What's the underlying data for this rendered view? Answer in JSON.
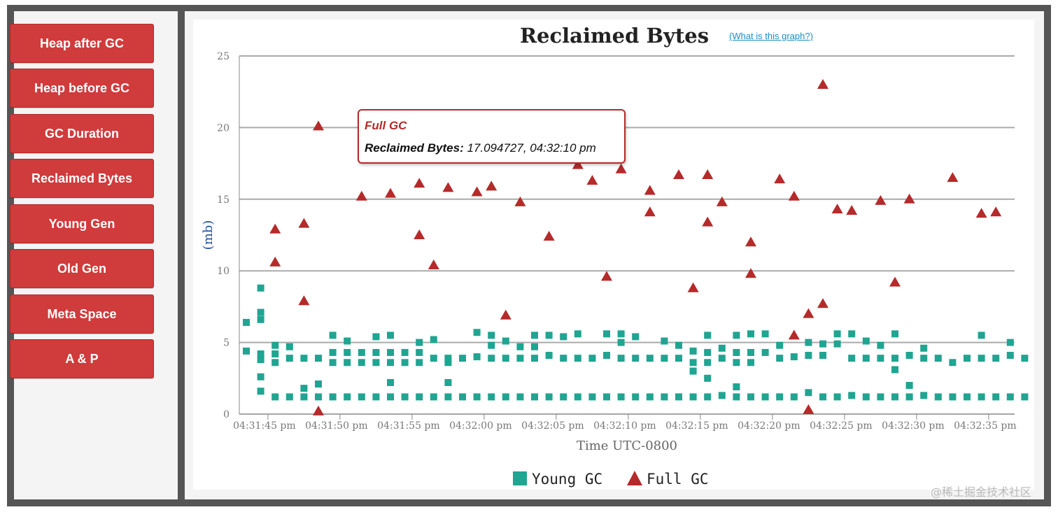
{
  "sidebar": {
    "items": [
      {
        "label": "Heap after GC"
      },
      {
        "label": "Heap before GC"
      },
      {
        "label": "GC Duration"
      },
      {
        "label": "Reclaimed Bytes"
      },
      {
        "label": "Young Gen"
      },
      {
        "label": "Old Gen"
      },
      {
        "label": "Meta Space"
      },
      {
        "label": "A & P"
      }
    ]
  },
  "help_link": "(What is this graph?)",
  "tooltip": {
    "series": "Full GC",
    "key": "Reclaimed Bytes:",
    "value": "17.094727, 04:32:10 pm"
  },
  "watermark": "@稀土掘金技术社区",
  "colors": {
    "young": "#1fa591",
    "full": "#b52a2a",
    "button": "#d03b3b",
    "grid": "#aaaaaa",
    "ylabel": "#1f4f9c",
    "frame": "#555555"
  },
  "chart_data": {
    "type": "scatter",
    "title": "Reclaimed Bytes",
    "xlabel": "Time UTC-0800",
    "ylabel": "(mb)",
    "ylim": [
      0,
      25
    ],
    "xlim_seconds": [
      43.5,
      36.8
    ],
    "yticks": [
      "0",
      "5",
      "10",
      "15",
      "20",
      "25"
    ],
    "xticks": [
      "04:31:45 pm",
      "04:31:50 pm",
      "04:31:55 pm",
      "04:32:00 pm",
      "04:32:05 pm",
      "04:32:10 pm",
      "04:32:15 pm",
      "04:32:20 pm",
      "04:32:25 pm",
      "04:32:30 pm",
      "04:32:35 pm"
    ],
    "xtick_seconds": [
      45,
      50,
      55,
      60,
      65,
      70,
      75,
      80,
      85,
      90,
      95
    ],
    "grid": true,
    "legend": "bottom-center",
    "series": [
      {
        "name": "Young GC",
        "marker": "square",
        "points": [
          [
            43.5,
            6.4
          ],
          [
            43.5,
            4.4
          ],
          [
            44.5,
            8.8
          ],
          [
            44.5,
            7.1
          ],
          [
            44.5,
            6.6
          ],
          [
            44.5,
            4.2
          ],
          [
            44.5,
            3.8
          ],
          [
            44.5,
            2.6
          ],
          [
            44.5,
            1.6
          ],
          [
            45.5,
            4.8
          ],
          [
            45.5,
            4.2
          ],
          [
            45.5,
            3.6
          ],
          [
            45.5,
            1.2
          ],
          [
            46.5,
            4.7
          ],
          [
            46.5,
            3.9
          ],
          [
            46.5,
            1.2
          ],
          [
            47.5,
            3.9
          ],
          [
            47.5,
            1.8
          ],
          [
            47.5,
            1.2
          ],
          [
            48.5,
            3.9
          ],
          [
            48.5,
            2.1
          ],
          [
            48.5,
            1.2
          ],
          [
            49.5,
            5.5
          ],
          [
            49.5,
            4.3
          ],
          [
            49.5,
            3.6
          ],
          [
            49.5,
            1.2
          ],
          [
            50.5,
            5.1
          ],
          [
            50.5,
            4.3
          ],
          [
            50.5,
            3.6
          ],
          [
            50.5,
            1.2
          ],
          [
            51.5,
            4.3
          ],
          [
            51.5,
            3.6
          ],
          [
            51.5,
            1.2
          ],
          [
            52.5,
            5.4
          ],
          [
            52.5,
            4.3
          ],
          [
            52.5,
            3.6
          ],
          [
            52.5,
            1.2
          ],
          [
            53.5,
            5.5
          ],
          [
            53.5,
            4.3
          ],
          [
            53.5,
            3.6
          ],
          [
            53.5,
            2.2
          ],
          [
            53.5,
            1.2
          ],
          [
            54.5,
            4.3
          ],
          [
            54.5,
            3.6
          ],
          [
            54.5,
            1.2
          ],
          [
            55.5,
            5.0
          ],
          [
            55.5,
            4.3
          ],
          [
            55.5,
            3.6
          ],
          [
            55.5,
            1.2
          ],
          [
            56.5,
            5.2
          ],
          [
            56.5,
            3.9
          ],
          [
            56.5,
            1.2
          ],
          [
            57.5,
            3.9
          ],
          [
            57.5,
            3.6
          ],
          [
            57.5,
            2.2
          ],
          [
            57.5,
            1.2
          ],
          [
            58.5,
            3.9
          ],
          [
            58.5,
            1.2
          ],
          [
            59.5,
            5.7
          ],
          [
            59.5,
            4.0
          ],
          [
            59.5,
            1.2
          ],
          [
            60.5,
            5.5
          ],
          [
            60.5,
            4.8
          ],
          [
            60.5,
            3.9
          ],
          [
            60.5,
            1.2
          ],
          [
            61.5,
            5.1
          ],
          [
            61.5,
            3.9
          ],
          [
            61.5,
            1.2
          ],
          [
            62.5,
            4.7
          ],
          [
            62.5,
            3.9
          ],
          [
            62.5,
            1.2
          ],
          [
            63.5,
            5.5
          ],
          [
            63.5,
            4.7
          ],
          [
            63.5,
            3.9
          ],
          [
            63.5,
            1.2
          ],
          [
            64.5,
            5.5
          ],
          [
            64.5,
            4.1
          ],
          [
            64.5,
            1.2
          ],
          [
            65.5,
            5.4
          ],
          [
            65.5,
            3.9
          ],
          [
            65.5,
            1.2
          ],
          [
            66.5,
            5.6
          ],
          [
            66.5,
            3.9
          ],
          [
            66.5,
            1.2
          ],
          [
            67.5,
            3.9
          ],
          [
            67.5,
            1.2
          ],
          [
            68.5,
            5.6
          ],
          [
            68.5,
            4.1
          ],
          [
            68.5,
            1.2
          ],
          [
            69.5,
            5.6
          ],
          [
            69.5,
            5.0
          ],
          [
            69.5,
            3.9
          ],
          [
            69.5,
            1.2
          ],
          [
            70.5,
            5.4
          ],
          [
            70.5,
            3.9
          ],
          [
            70.5,
            1.2
          ],
          [
            71.5,
            3.9
          ],
          [
            71.5,
            1.2
          ],
          [
            72.5,
            5.1
          ],
          [
            72.5,
            3.9
          ],
          [
            72.5,
            1.2
          ],
          [
            73.5,
            4.8
          ],
          [
            73.5,
            3.9
          ],
          [
            73.5,
            1.2
          ],
          [
            74.5,
            4.4
          ],
          [
            74.5,
            3.6
          ],
          [
            74.5,
            3.0
          ],
          [
            74.5,
            1.2
          ],
          [
            75.5,
            5.5
          ],
          [
            75.5,
            4.3
          ],
          [
            75.5,
            3.6
          ],
          [
            75.5,
            2.5
          ],
          [
            75.5,
            1.2
          ],
          [
            76.5,
            4.6
          ],
          [
            76.5,
            3.9
          ],
          [
            76.5,
            1.3
          ],
          [
            77.5,
            5.5
          ],
          [
            77.5,
            4.3
          ],
          [
            77.5,
            3.6
          ],
          [
            77.5,
            1.9
          ],
          [
            77.5,
            1.2
          ],
          [
            78.5,
            5.6
          ],
          [
            78.5,
            4.3
          ],
          [
            78.5,
            3.6
          ],
          [
            78.5,
            1.2
          ],
          [
            79.5,
            5.6
          ],
          [
            79.5,
            4.3
          ],
          [
            79.5,
            1.2
          ],
          [
            80.5,
            4.8
          ],
          [
            80.5,
            3.9
          ],
          [
            80.5,
            1.2
          ],
          [
            81.5,
            4.0
          ],
          [
            81.5,
            1.2
          ],
          [
            82.5,
            5.0
          ],
          [
            82.5,
            4.1
          ],
          [
            82.5,
            1.5
          ],
          [
            83.5,
            4.9
          ],
          [
            83.5,
            4.1
          ],
          [
            83.5,
            1.2
          ],
          [
            84.5,
            5.6
          ],
          [
            84.5,
            4.9
          ],
          [
            84.5,
            1.2
          ],
          [
            85.5,
            5.6
          ],
          [
            85.5,
            3.9
          ],
          [
            85.5,
            1.3
          ],
          [
            86.5,
            5.1
          ],
          [
            86.5,
            3.9
          ],
          [
            86.5,
            1.2
          ],
          [
            87.5,
            4.8
          ],
          [
            87.5,
            3.9
          ],
          [
            87.5,
            1.2
          ],
          [
            88.5,
            5.6
          ],
          [
            88.5,
            3.9
          ],
          [
            88.5,
            3.1
          ],
          [
            88.5,
            1.2
          ],
          [
            89.5,
            4.1
          ],
          [
            89.5,
            2.0
          ],
          [
            89.5,
            1.2
          ],
          [
            90.5,
            4.6
          ],
          [
            90.5,
            3.9
          ],
          [
            90.5,
            1.3
          ],
          [
            91.5,
            3.9
          ],
          [
            91.5,
            1.2
          ],
          [
            92.5,
            3.6
          ],
          [
            92.5,
            1.2
          ],
          [
            93.5,
            3.9
          ],
          [
            93.5,
            1.2
          ],
          [
            94.5,
            5.5
          ],
          [
            94.5,
            3.9
          ],
          [
            94.5,
            1.2
          ],
          [
            95.5,
            3.9
          ],
          [
            95.5,
            1.2
          ],
          [
            96.5,
            5.0
          ],
          [
            96.5,
            4.1
          ],
          [
            96.5,
            1.2
          ],
          [
            97.5,
            3.9
          ],
          [
            97.5,
            1.2
          ]
        ]
      },
      {
        "name": "Full GC",
        "marker": "triangle",
        "points": [
          [
            45.5,
            12.9
          ],
          [
            45.5,
            10.6
          ],
          [
            47.5,
            13.3
          ],
          [
            47.5,
            7.9
          ],
          [
            48.5,
            20.1
          ],
          [
            48.5,
            0.2
          ],
          [
            51.5,
            15.2
          ],
          [
            53.5,
            15.4
          ],
          [
            55.5,
            16.1
          ],
          [
            55.5,
            12.5
          ],
          [
            56.5,
            10.4
          ],
          [
            57.5,
            15.8
          ],
          [
            59.5,
            15.5
          ],
          [
            60.5,
            15.9
          ],
          [
            61.5,
            6.9
          ],
          [
            62.5,
            14.8
          ],
          [
            64.5,
            12.4
          ],
          [
            66.5,
            17.4
          ],
          [
            67.5,
            16.3
          ],
          [
            68.5,
            9.6
          ],
          [
            69.5,
            17.1
          ],
          [
            71.5,
            15.6
          ],
          [
            71.5,
            14.1
          ],
          [
            73.5,
            16.7
          ],
          [
            74.5,
            8.8
          ],
          [
            75.5,
            16.7
          ],
          [
            75.5,
            13.4
          ],
          [
            76.5,
            14.8
          ],
          [
            78.5,
            12.0
          ],
          [
            78.5,
            9.8
          ],
          [
            80.5,
            16.4
          ],
          [
            81.5,
            15.2
          ],
          [
            81.5,
            5.5
          ],
          [
            82.5,
            7.0
          ],
          [
            82.5,
            0.3
          ],
          [
            83.5,
            23.0
          ],
          [
            83.5,
            7.7
          ],
          [
            84.5,
            14.3
          ],
          [
            85.5,
            14.2
          ],
          [
            87.5,
            14.9
          ],
          [
            88.5,
            9.2
          ],
          [
            89.5,
            15.0
          ],
          [
            92.5,
            16.5
          ],
          [
            94.5,
            14.0
          ],
          [
            95.5,
            14.1
          ]
        ]
      }
    ]
  }
}
